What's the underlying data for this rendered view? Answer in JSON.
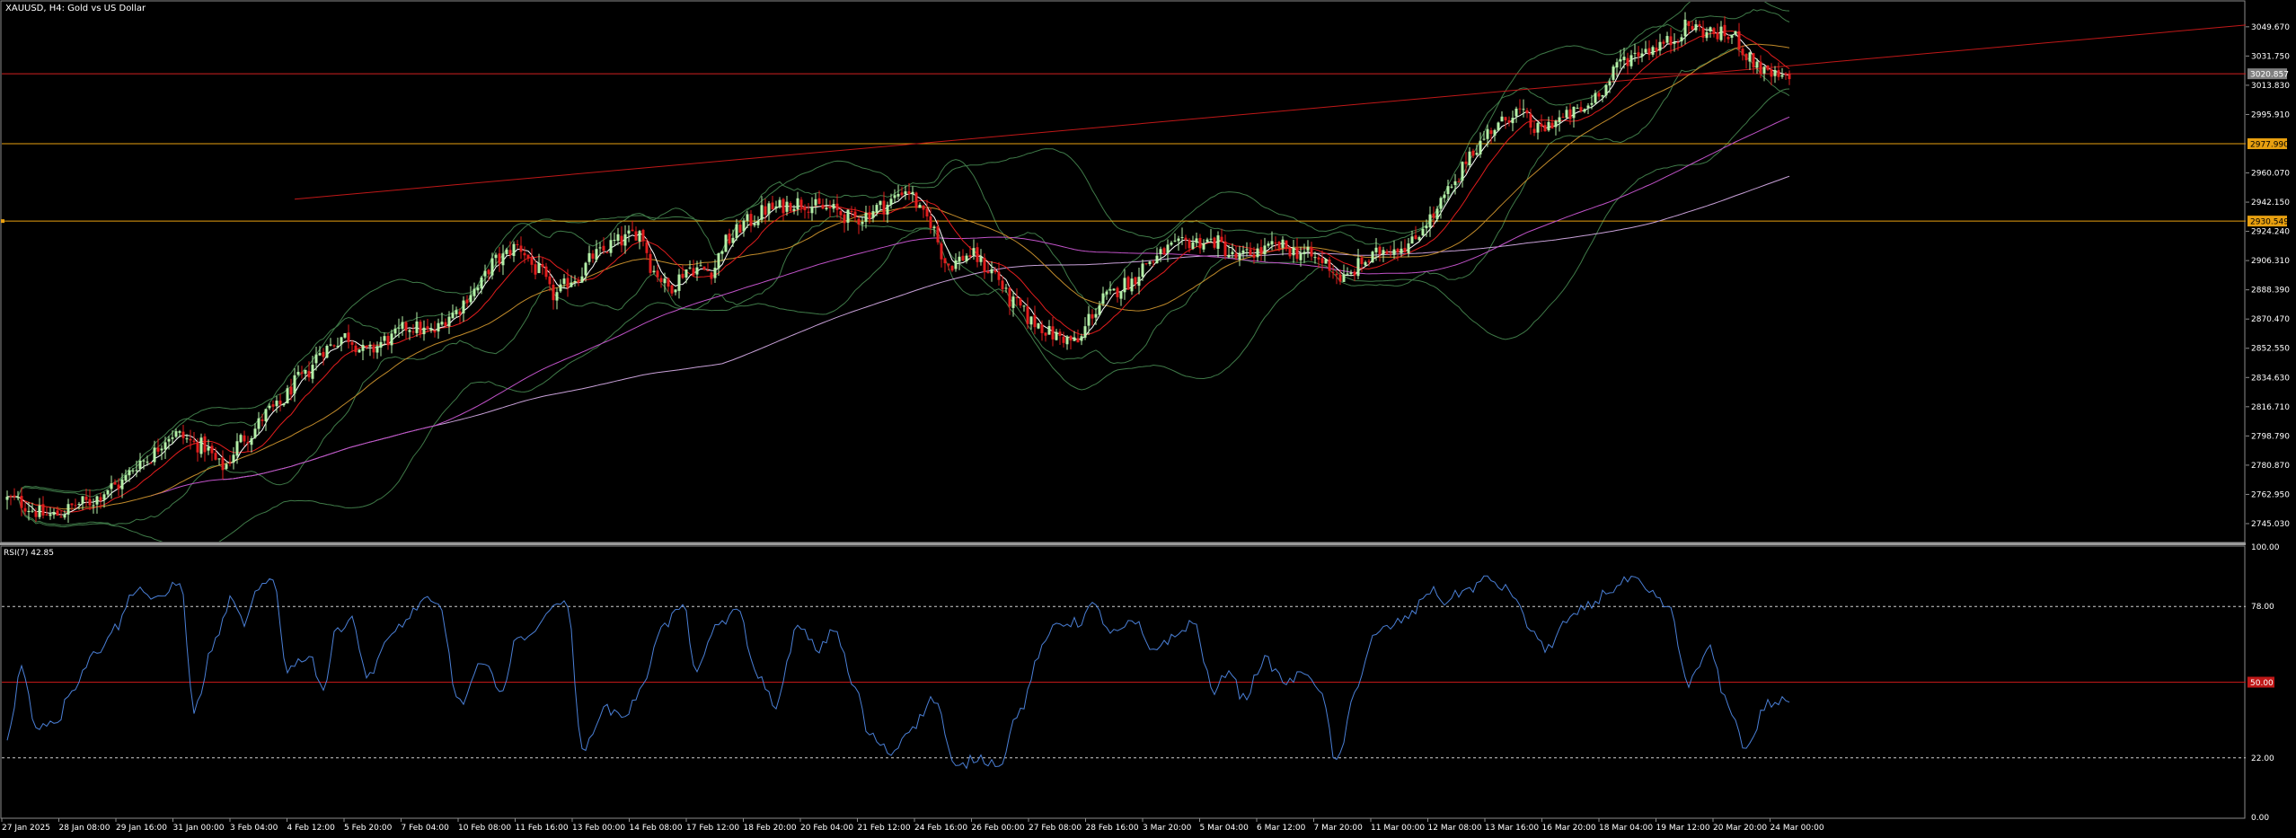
{
  "window": {
    "title": "XAUUSD, H4:  Gold vs US Dollar",
    "rsi_title": "RSI(7) 42.85"
  },
  "colors": {
    "background": "#000000",
    "grid_frame": "#8c8c8c",
    "candle_up": "#b4f0a8",
    "candle_down": "#e11d1d",
    "sma_fast": "#ffffff",
    "sma_mid": "#e11d1d",
    "sma_slow": "#c08a2a",
    "ema_long": "#c052c8",
    "ema_long2": "#c8a0d8",
    "bollinger": "#3f7a48",
    "hline_red": "#d12020",
    "hline_orange": "#e8a010",
    "trend_red": "#c01818",
    "rsi_line": "#4a7fd6",
    "rsi_level_red": "#c01818",
    "rsi_dashed": "#cfcfcf"
  },
  "chart_data": [
    {
      "type": "candlestick",
      "symbol": "XAUUSD",
      "timeframe": "H4",
      "ylim": [
        2734,
        3065
      ],
      "price_axis": [
        "3049.670",
        "3031.750",
        "3013.830",
        "2995.910",
        "2960.070",
        "2942.150",
        "2924.240",
        "2906.310",
        "2888.390",
        "2870.470",
        "2852.550",
        "2834.630",
        "2816.710",
        "2798.790",
        "2780.870",
        "2762.950",
        "2745.030"
      ],
      "time_axis": [
        "27 Jan 2025",
        "28 Jan 08:00",
        "29 Jan 16:00",
        "31 Jan 00:00",
        "3 Feb 04:00",
        "4 Feb 12:00",
        "5 Feb 20:00",
        "7 Feb 04:00",
        "10 Feb 08:00",
        "11 Feb 16:00",
        "13 Feb 00:00",
        "14 Feb 08:00",
        "17 Feb 12:00",
        "18 Feb 20:00",
        "20 Feb 04:00",
        "21 Feb 12:00",
        "24 Feb 16:00",
        "26 Feb 00:00",
        "27 Feb 08:00",
        "28 Feb 16:00",
        "3 Mar 20:00",
        "5 Mar 04:00",
        "6 Mar 12:00",
        "7 Mar 20:00",
        "11 Mar 00:00",
        "12 Mar 08:00",
        "13 Mar 16:00",
        "16 Mar 20:00",
        "18 Mar 04:00",
        "19 Mar 12:00",
        "20 Mar 20:00",
        "24 Mar 00:00"
      ],
      "horizontal_levels": [
        {
          "price": 3020.857,
          "label": "3020.857",
          "color": "#d12020",
          "badge_bg": "#7f7f7f",
          "badge_fg": "#ffffff"
        },
        {
          "price": 2977.99,
          "label": "2977.990",
          "color": "#e8a010",
          "badge_bg": "#e8a010",
          "badge_fg": "#000000"
        },
        {
          "price": 2930.549,
          "label": "2930.549",
          "color": "#e8a010",
          "badge_bg": "#e8a010",
          "badge_fg": "#000000"
        }
      ],
      "trendline": {
        "from": {
          "bar": 80,
          "price": 2944
        },
        "to": {
          "bar": 370,
          "price": 3001
        }
      },
      "shape_points": [
        [
          0,
          2760
        ],
        [
          12,
          2750
        ],
        [
          22,
          2758
        ],
        [
          30,
          2768
        ],
        [
          38,
          2784
        ],
        [
          46,
          2800
        ],
        [
          54,
          2793
        ],
        [
          60,
          2780
        ],
        [
          66,
          2798
        ],
        [
          74,
          2815
        ],
        [
          82,
          2834
        ],
        [
          88,
          2852
        ],
        [
          94,
          2860
        ],
        [
          100,
          2850
        ],
        [
          106,
          2858
        ],
        [
          112,
          2866
        ],
        [
          118,
          2862
        ],
        [
          124,
          2874
        ],
        [
          130,
          2888
        ],
        [
          136,
          2906
        ],
        [
          142,
          2915
        ],
        [
          148,
          2900
        ],
        [
          152,
          2885
        ],
        [
          158,
          2896
        ],
        [
          164,
          2910
        ],
        [
          170,
          2918
        ],
        [
          176,
          2924
        ],
        [
          180,
          2900
        ],
        [
          184,
          2890
        ],
        [
          190,
          2902
        ],
        [
          196,
          2900
        ],
        [
          200,
          2918
        ],
        [
          206,
          2930
        ],
        [
          212,
          2938
        ],
        [
          220,
          2942
        ],
        [
          228,
          2938
        ],
        [
          236,
          2932
        ],
        [
          244,
          2940
        ],
        [
          250,
          2950
        ],
        [
          256,
          2932
        ],
        [
          262,
          2904
        ],
        [
          268,
          2910
        ],
        [
          274,
          2900
        ],
        [
          280,
          2880
        ],
        [
          286,
          2868
        ],
        [
          292,
          2860
        ],
        [
          298,
          2856
        ],
        [
          302,
          2874
        ],
        [
          306,
          2884
        ],
        [
          312,
          2893
        ],
        [
          318,
          2906
        ],
        [
          324,
          2914
        ],
        [
          330,
          2918
        ],
        [
          336,
          2918
        ],
        [
          342,
          2908
        ],
        [
          348,
          2912
        ],
        [
          354,
          2915
        ],
        [
          360,
          2911
        ],
        [
          366,
          2906
        ],
        [
          372,
          2895
        ],
        [
          378,
          2906
        ],
        [
          384,
          2914
        ],
        [
          390,
          2916
        ],
        [
          396,
          2932
        ],
        [
          402,
          2950
        ],
        [
          408,
          2975
        ],
        [
          414,
          2988
        ],
        [
          420,
          2998
        ],
        [
          426,
          2986
        ],
        [
          432,
          2993
        ],
        [
          438,
          2998
        ],
        [
          444,
          3012
        ],
        [
          450,
          3030
        ],
        [
          456,
          3036
        ],
        [
          462,
          3040
        ],
        [
          468,
          3050
        ],
        [
          474,
          3046
        ],
        [
          480,
          3044
        ],
        [
          486,
          3028
        ],
        [
          490,
          3020
        ],
        [
          496,
          3017
        ]
      ],
      "bars_count": 500
    },
    {
      "type": "line",
      "indicator": "RSI",
      "ylim": [
        0,
        100
      ],
      "levels": [
        {
          "value": 78,
          "style": "dashed"
        },
        {
          "value": 50,
          "style": "solid-red",
          "badge": "50.00"
        },
        {
          "value": 22,
          "style": "dashed"
        }
      ],
      "value_axis": [
        "100.00",
        "78.00",
        "22.00",
        "0.00"
      ],
      "last_value": 42.85,
      "shape_points": [
        [
          0,
          30
        ],
        [
          4,
          55
        ],
        [
          8,
          34
        ],
        [
          14,
          36
        ],
        [
          18,
          48
        ],
        [
          24,
          60
        ],
        [
          30,
          70
        ],
        [
          36,
          85
        ],
        [
          42,
          80
        ],
        [
          48,
          88
        ],
        [
          52,
          40
        ],
        [
          58,
          65
        ],
        [
          62,
          80
        ],
        [
          66,
          72
        ],
        [
          70,
          84
        ],
        [
          74,
          88
        ],
        [
          78,
          55
        ],
        [
          84,
          60
        ],
        [
          88,
          48
        ],
        [
          92,
          70
        ],
        [
          96,
          74
        ],
        [
          100,
          52
        ],
        [
          106,
          65
        ],
        [
          110,
          72
        ],
        [
          116,
          80
        ],
        [
          120,
          78
        ],
        [
          126,
          42
        ],
        [
          132,
          56
        ],
        [
          138,
          48
        ],
        [
          142,
          66
        ],
        [
          148,
          70
        ],
        [
          152,
          80
        ],
        [
          156,
          78
        ],
        [
          160,
          24
        ],
        [
          166,
          40
        ],
        [
          172,
          38
        ],
        [
          176,
          46
        ],
        [
          182,
          70
        ],
        [
          188,
          78
        ],
        [
          192,
          54
        ],
        [
          198,
          72
        ],
        [
          204,
          76
        ],
        [
          208,
          54
        ],
        [
          214,
          42
        ],
        [
          220,
          70
        ],
        [
          226,
          62
        ],
        [
          230,
          70
        ],
        [
          236,
          48
        ],
        [
          240,
          30
        ],
        [
          246,
          24
        ],
        [
          252,
          34
        ],
        [
          258,
          44
        ],
        [
          264,
          18
        ],
        [
          270,
          22
        ],
        [
          276,
          20
        ],
        [
          282,
          40
        ],
        [
          288,
          62
        ],
        [
          292,
          72
        ],
        [
          298,
          72
        ],
        [
          302,
          78
        ],
        [
          308,
          68
        ],
        [
          314,
          72
        ],
        [
          318,
          62
        ],
        [
          324,
          66
        ],
        [
          330,
          72
        ],
        [
          336,
          46
        ],
        [
          340,
          55
        ],
        [
          344,
          44
        ],
        [
          350,
          58
        ],
        [
          356,
          50
        ],
        [
          362,
          54
        ],
        [
          366,
          44
        ],
        [
          370,
          20
        ],
        [
          376,
          50
        ],
        [
          380,
          66
        ],
        [
          384,
          70
        ],
        [
          390,
          74
        ],
        [
          396,
          84
        ],
        [
          400,
          80
        ],
        [
          406,
          84
        ],
        [
          412,
          88
        ],
        [
          418,
          84
        ],
        [
          424,
          70
        ],
        [
          428,
          62
        ],
        [
          434,
          72
        ],
        [
          440,
          78
        ],
        [
          446,
          84
        ],
        [
          452,
          88
        ],
        [
          458,
          82
        ],
        [
          462,
          78
        ],
        [
          468,
          50
        ],
        [
          474,
          62
        ],
        [
          478,
          44
        ],
        [
          484,
          26
        ],
        [
          490,
          42
        ],
        [
          496,
          43
        ]
      ]
    }
  ]
}
